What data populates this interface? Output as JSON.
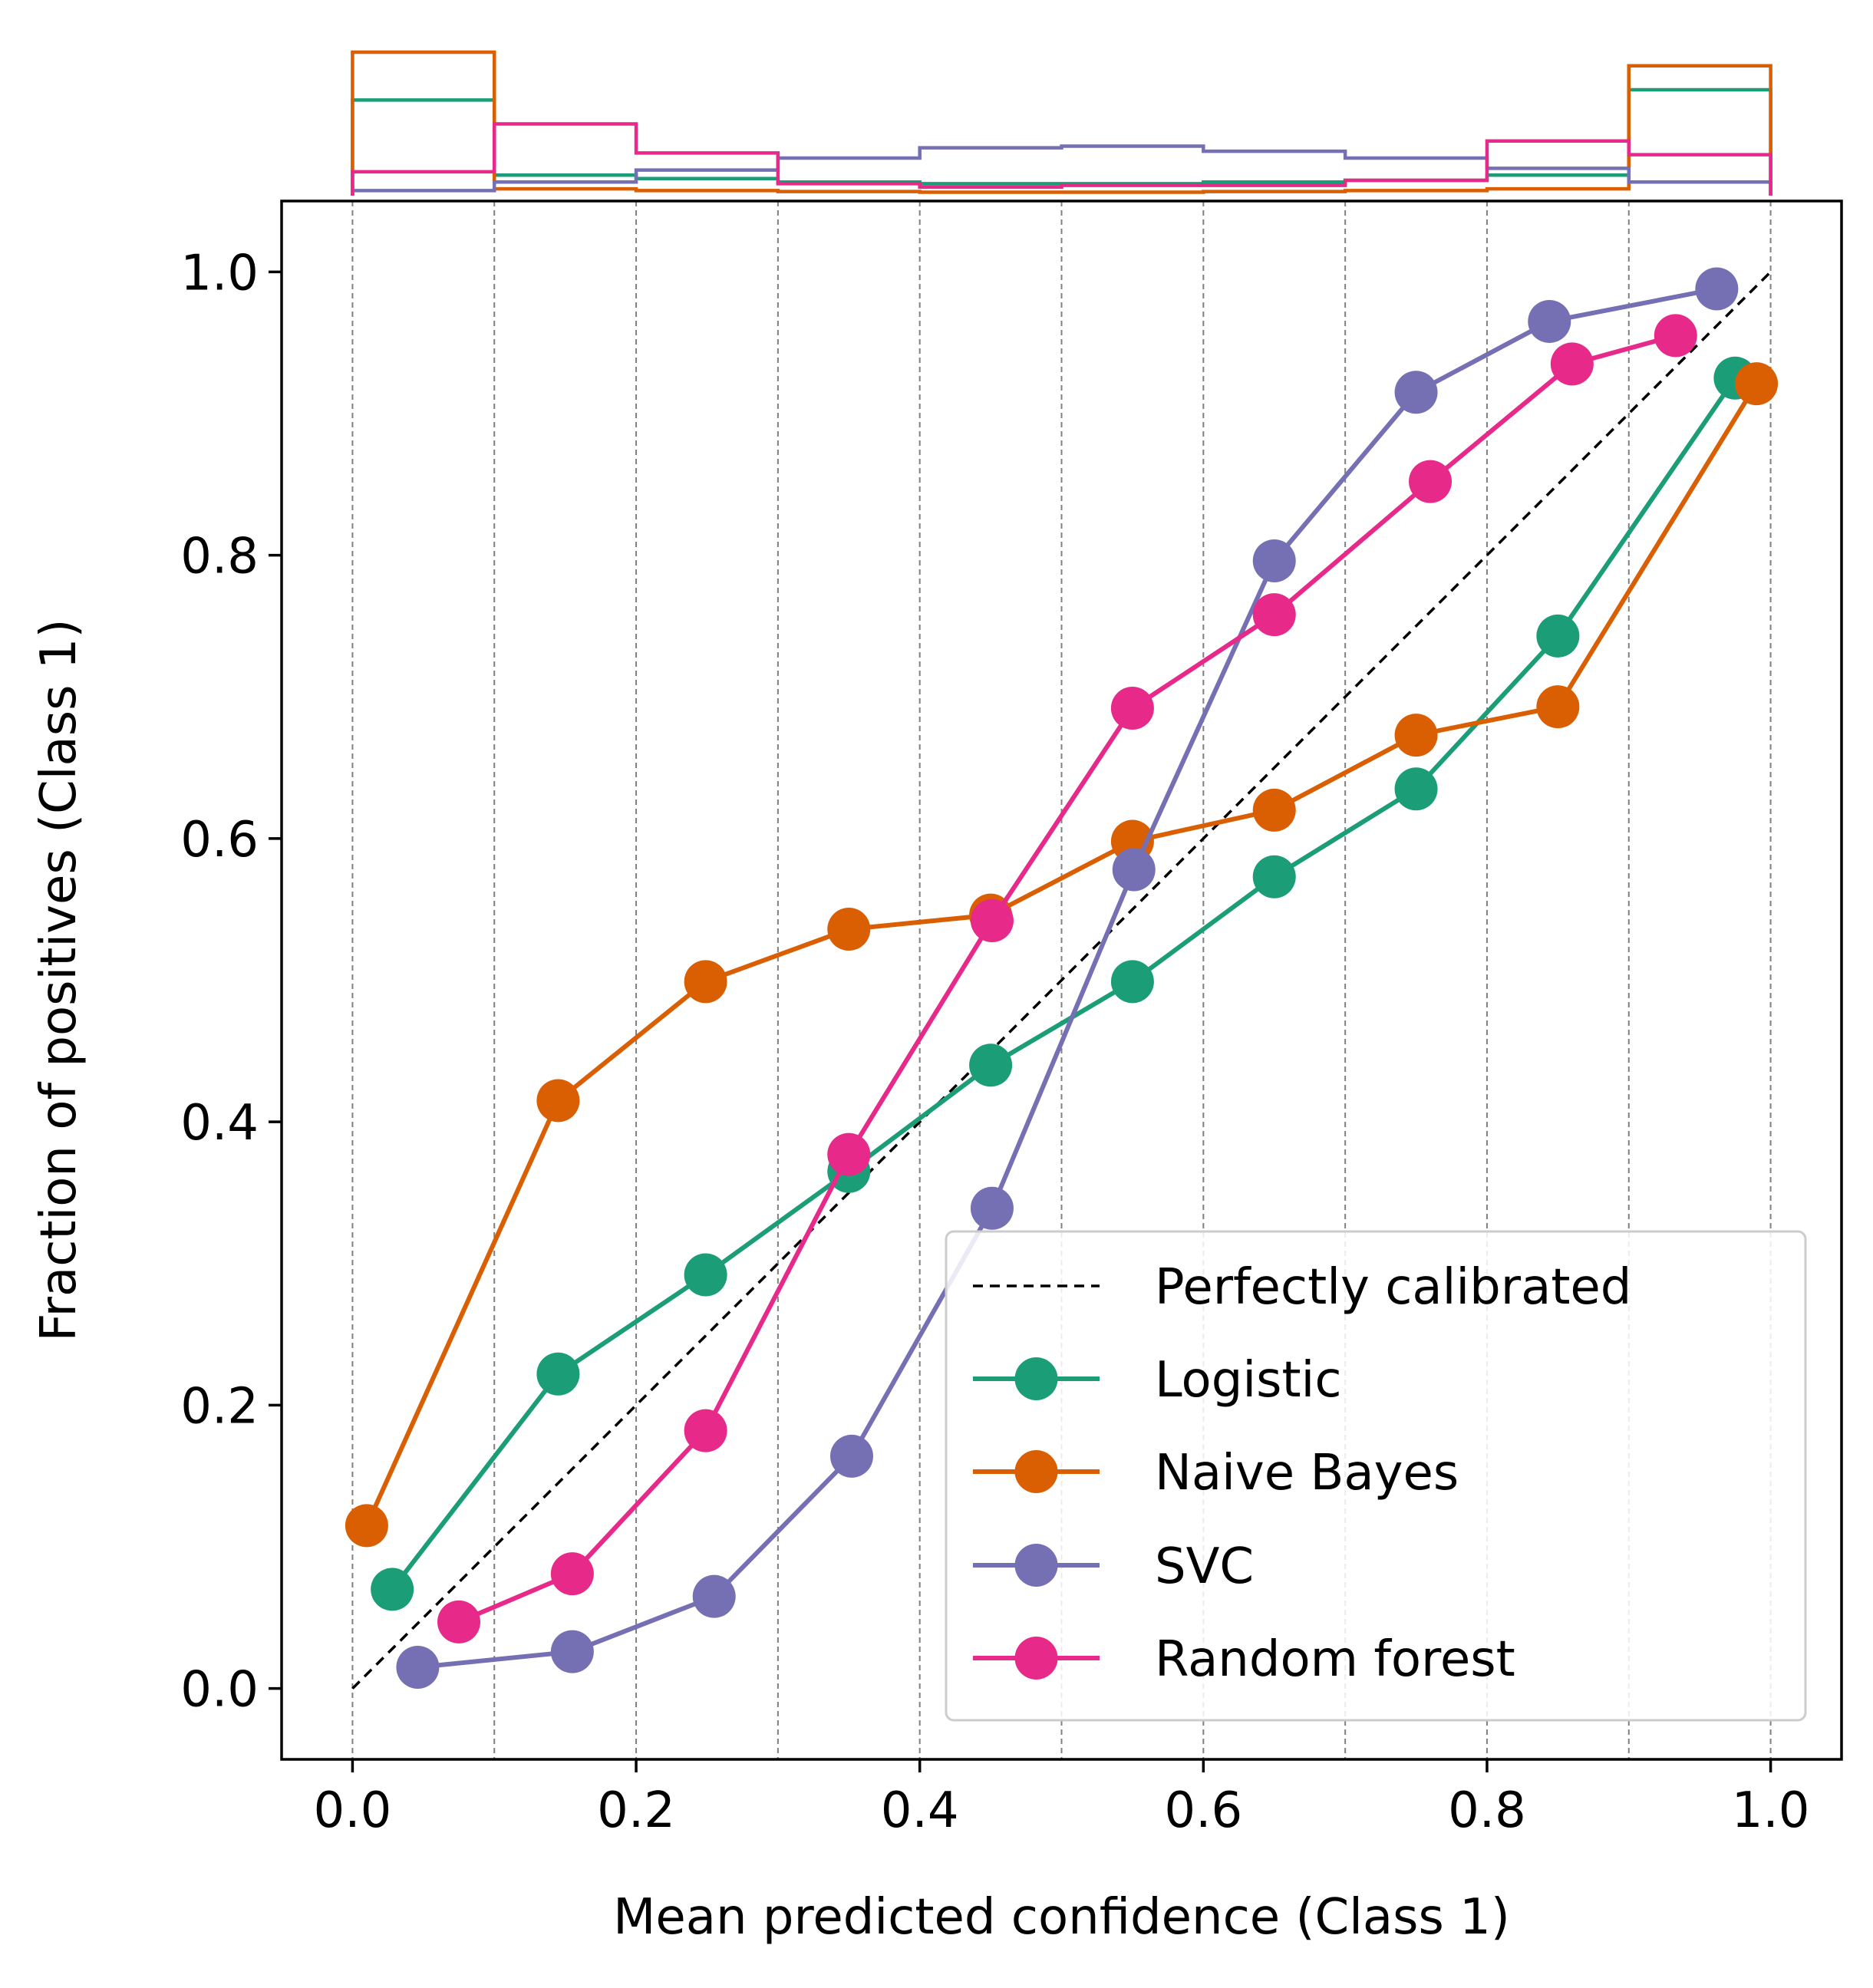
{
  "chart_data": {
    "type": "line",
    "xlabel": "Mean predicted confidence (Class 1)",
    "ylabel": "Fraction of positives (Class 1)",
    "xlim": [
      -0.05,
      1.05
    ],
    "ylim": [
      -0.05,
      1.05
    ],
    "x_ticks": [
      "0.0",
      "0.2",
      "0.4",
      "0.6",
      "0.8",
      "1.0"
    ],
    "y_ticks": [
      "0.0",
      "0.2",
      "0.4",
      "0.6",
      "0.8",
      "1.0"
    ],
    "x_tick_values": [
      0.0,
      0.2,
      0.4,
      0.6,
      0.8,
      1.0
    ],
    "y_tick_values": [
      0.0,
      0.2,
      0.4,
      0.6,
      0.8,
      1.0
    ],
    "bin_edges": [
      0.0,
      0.1,
      0.2,
      0.3,
      0.4,
      0.5,
      0.6,
      0.7,
      0.8,
      0.9,
      1.0
    ],
    "grid": "vertical dashed at bin edges",
    "legend_position": "lower-right",
    "reference_line": {
      "name": "Perfectly calibrated",
      "x": [
        0,
        1
      ],
      "y": [
        0,
        1
      ],
      "color": "#000000"
    },
    "series": [
      {
        "name": "Logistic",
        "color": "#1b9e77",
        "x": [
          0.028,
          0.145,
          0.249,
          0.35,
          0.45,
          0.55,
          0.65,
          0.75,
          0.85,
          0.975
        ],
        "y": [
          0.07,
          0.222,
          0.292,
          0.365,
          0.44,
          0.499,
          0.573,
          0.635,
          0.743,
          0.925
        ],
        "hist_fraction": [
          0.28,
          0.06,
          0.05,
          0.04,
          0.035,
          0.035,
          0.04,
          0.045,
          0.06,
          0.31
        ]
      },
      {
        "name": "Naive Bayes",
        "color": "#d95f02",
        "x": [
          0.01,
          0.145,
          0.249,
          0.35,
          0.45,
          0.55,
          0.65,
          0.75,
          0.85,
          0.99
        ],
        "y": [
          0.115,
          0.415,
          0.499,
          0.536,
          0.546,
          0.598,
          0.62,
          0.673,
          0.693,
          0.921
        ],
        "hist_fraction": [
          0.42,
          0.02,
          0.015,
          0.012,
          0.01,
          0.01,
          0.012,
          0.015,
          0.02,
          0.38
        ]
      },
      {
        "name": "SVC",
        "color": "#7570b3",
        "x": [
          0.046,
          0.155,
          0.255,
          0.352,
          0.451,
          0.551,
          0.65,
          0.75,
          0.844,
          0.962
        ],
        "y": [
          0.015,
          0.026,
          0.065,
          0.164,
          0.339,
          0.578,
          0.796,
          0.915,
          0.965,
          0.988
        ],
        "hist_fraction": [
          0.015,
          0.04,
          0.075,
          0.11,
          0.14,
          0.145,
          0.13,
          0.11,
          0.08,
          0.04
        ]
      },
      {
        "name": "Random forest",
        "color": "#e7298a",
        "x": [
          0.075,
          0.155,
          0.249,
          0.35,
          0.451,
          0.55,
          0.65,
          0.76,
          0.86,
          0.933
        ],
        "y": [
          0.047,
          0.081,
          0.182,
          0.377,
          0.542,
          0.692,
          0.758,
          0.852,
          0.935,
          0.955
        ],
        "hist_fraction": [
          0.07,
          0.21,
          0.125,
          0.035,
          0.025,
          0.03,
          0.03,
          0.045,
          0.16,
          0.12
        ]
      }
    ]
  }
}
